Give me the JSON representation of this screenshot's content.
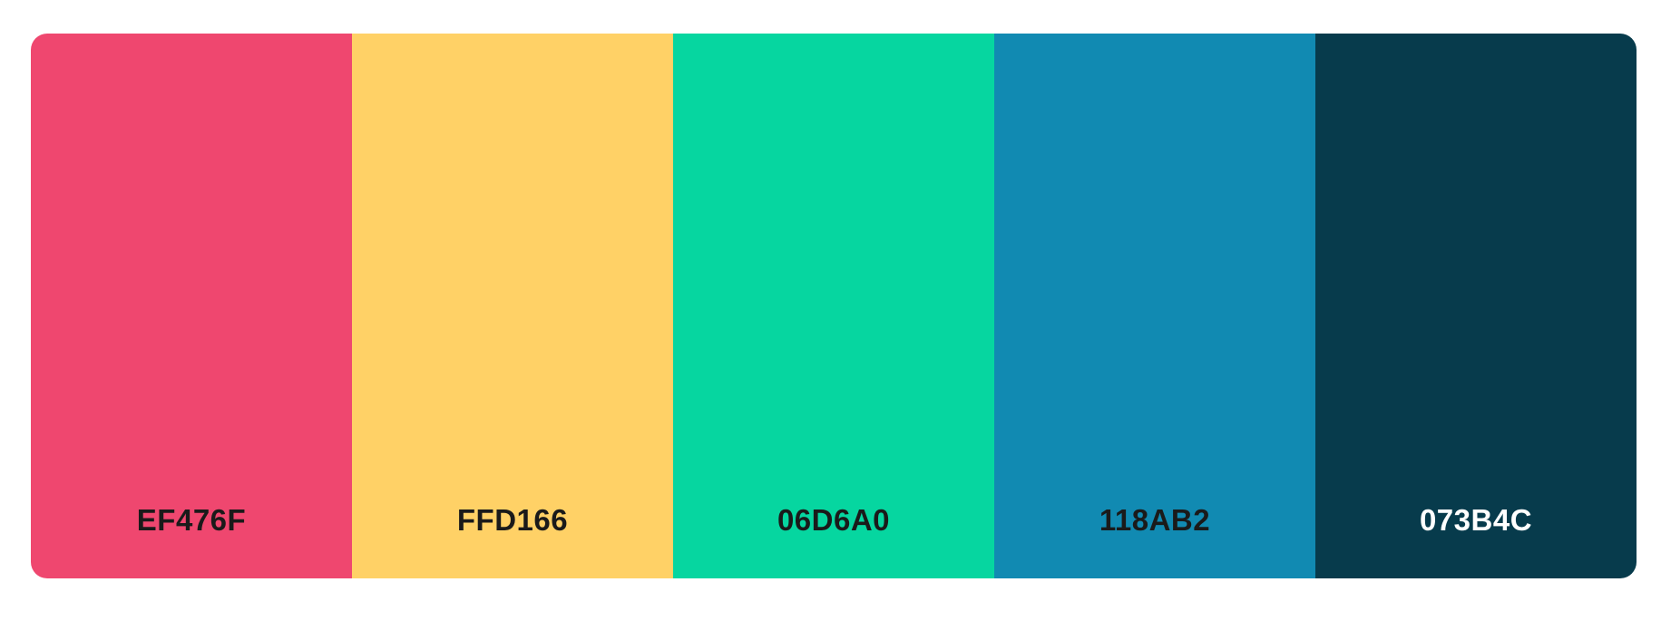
{
  "palette": {
    "swatches": [
      {
        "hex": "EF476F",
        "color": "#EF476F",
        "text_color": "#1a1a1a"
      },
      {
        "hex": "FFD166",
        "color": "#FFD166",
        "text_color": "#1a1a1a"
      },
      {
        "hex": "06D6A0",
        "color": "#06D6A0",
        "text_color": "#1a1a1a"
      },
      {
        "hex": "118AB2",
        "color": "#118AB2",
        "text_color": "#1a1a1a"
      },
      {
        "hex": "073B4C",
        "color": "#073B4C",
        "text_color": "#ffffff"
      }
    ]
  }
}
